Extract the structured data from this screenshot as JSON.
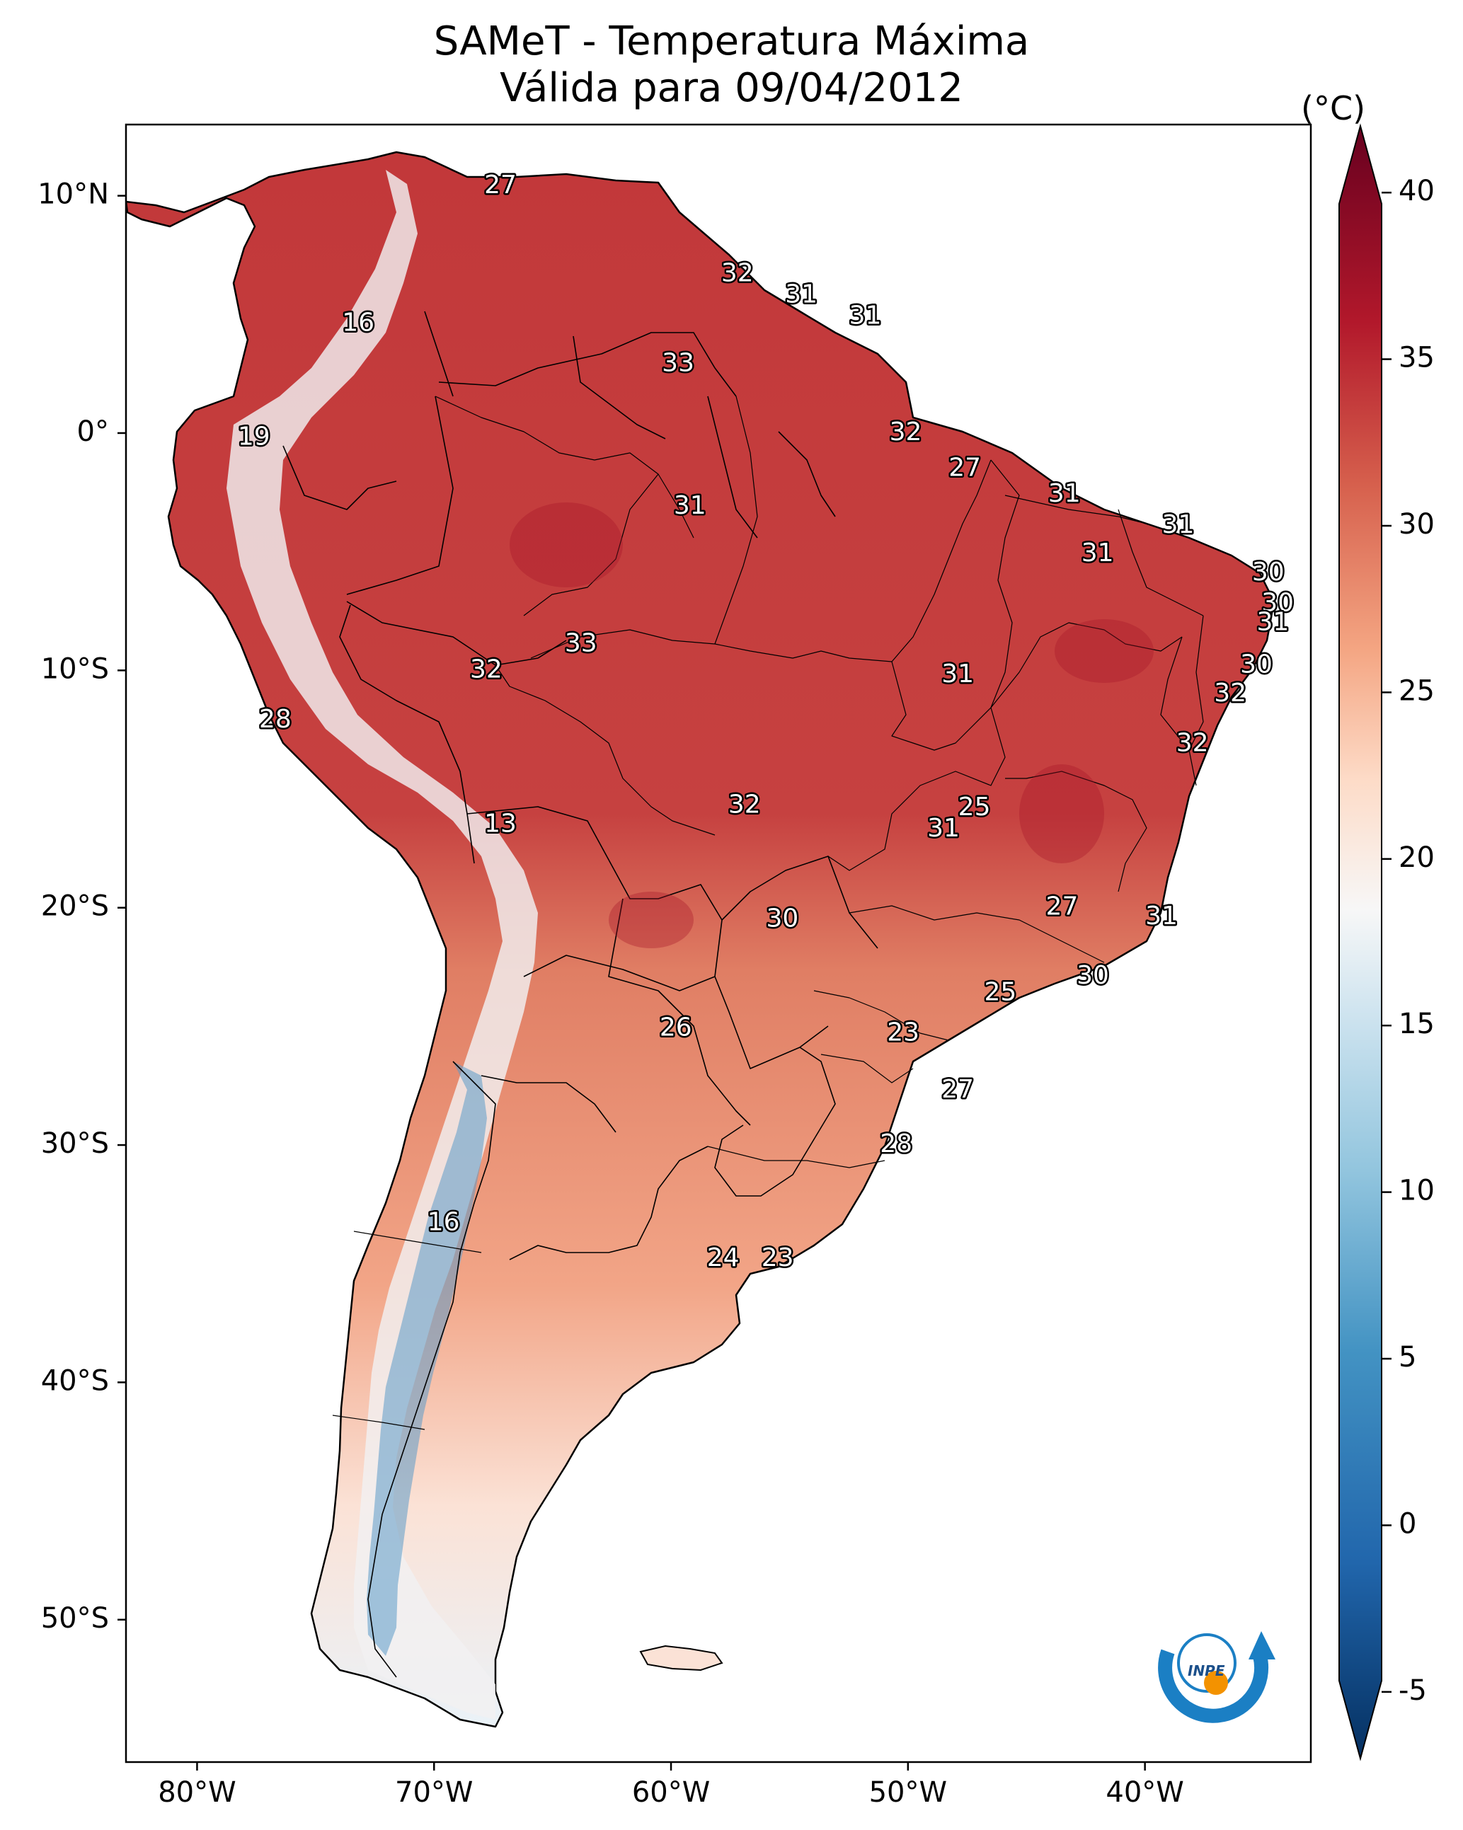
{
  "title": "SAMeT - Temperatura Máxima",
  "subtitle": "Válida para 09/04/2012",
  "colorbar": {
    "unit": "(°C)",
    "min": -7,
    "max": 42,
    "ticks": [
      "-5",
      "0",
      "5",
      "10",
      "15",
      "20",
      "25",
      "30",
      "35",
      "40"
    ],
    "colors": [
      "#0b3a70",
      "#2a6fb3",
      "#6fa8d3",
      "#b9d8ea",
      "#f7f7f7",
      "#f9c9ad",
      "#e8826a",
      "#cc4640",
      "#b51f2b",
      "#67001f"
    ]
  },
  "axes": {
    "lon_ticks": [
      "80°W",
      "70°W",
      "60°W",
      "50°W",
      "40°W"
    ],
    "lat_ticks": [
      "10°N",
      "0°",
      "10°S",
      "20°S",
      "30°S",
      "40°S",
      "50°S"
    ]
  },
  "map": {
    "lon_range": [
      -83,
      -33
    ],
    "lat_range": [
      -56,
      13
    ],
    "logo_text": "INPE",
    "labels": [
      {
        "v": "27",
        "lon": -67.2,
        "lat": 10.4
      },
      {
        "v": "16",
        "lon": -73.2,
        "lat": 4.6
      },
      {
        "v": "32",
        "lon": -57.2,
        "lat": 6.7
      },
      {
        "v": "31",
        "lon": -54.5,
        "lat": 5.8
      },
      {
        "v": "31",
        "lon": -51.8,
        "lat": 4.9
      },
      {
        "v": "33",
        "lon": -59.7,
        "lat": 2.9
      },
      {
        "v": "19",
        "lon": -77.6,
        "lat": -0.2
      },
      {
        "v": "32",
        "lon": -50.1,
        "lat": 0.0
      },
      {
        "v": "27",
        "lon": -47.6,
        "lat": -1.5
      },
      {
        "v": "31",
        "lon": -59.2,
        "lat": -3.1
      },
      {
        "v": "31",
        "lon": -43.4,
        "lat": -2.6
      },
      {
        "v": "31",
        "lon": -38.6,
        "lat": -3.9
      },
      {
        "v": "31",
        "lon": -42.0,
        "lat": -5.1
      },
      {
        "v": "30",
        "lon": -34.8,
        "lat": -5.9
      },
      {
        "v": "30",
        "lon": -34.4,
        "lat": -7.2
      },
      {
        "v": "31",
        "lon": -34.6,
        "lat": -8.0
      },
      {
        "v": "33",
        "lon": -63.8,
        "lat": -8.9
      },
      {
        "v": "32",
        "lon": -67.8,
        "lat": -10.0
      },
      {
        "v": "31",
        "lon": -47.9,
        "lat": -10.2
      },
      {
        "v": "30",
        "lon": -35.3,
        "lat": -9.8
      },
      {
        "v": "32",
        "lon": -36.4,
        "lat": -11.0
      },
      {
        "v": "28",
        "lon": -76.7,
        "lat": -12.1
      },
      {
        "v": "32",
        "lon": -38.0,
        "lat": -13.1
      },
      {
        "v": "25",
        "lon": -47.2,
        "lat": -15.8
      },
      {
        "v": "32",
        "lon": -56.9,
        "lat": -15.7
      },
      {
        "v": "31",
        "lon": -48.5,
        "lat": -16.7
      },
      {
        "v": "13",
        "lon": -67.2,
        "lat": -16.5
      },
      {
        "v": "27",
        "lon": -43.5,
        "lat": -20.0
      },
      {
        "v": "31",
        "lon": -39.3,
        "lat": -20.4
      },
      {
        "v": "30",
        "lon": -55.3,
        "lat": -20.5
      },
      {
        "v": "30",
        "lon": -42.2,
        "lat": -22.9
      },
      {
        "v": "25",
        "lon": -46.1,
        "lat": -23.6
      },
      {
        "v": "26",
        "lon": -59.8,
        "lat": -25.1
      },
      {
        "v": "23",
        "lon": -50.2,
        "lat": -25.3
      },
      {
        "v": "27",
        "lon": -47.9,
        "lat": -27.7
      },
      {
        "v": "28",
        "lon": -50.5,
        "lat": -30.0
      },
      {
        "v": "16",
        "lon": -69.6,
        "lat": -33.3
      },
      {
        "v": "24",
        "lon": -57.8,
        "lat": -34.8
      },
      {
        "v": "23",
        "lon": -55.5,
        "lat": -34.8
      }
    ]
  }
}
